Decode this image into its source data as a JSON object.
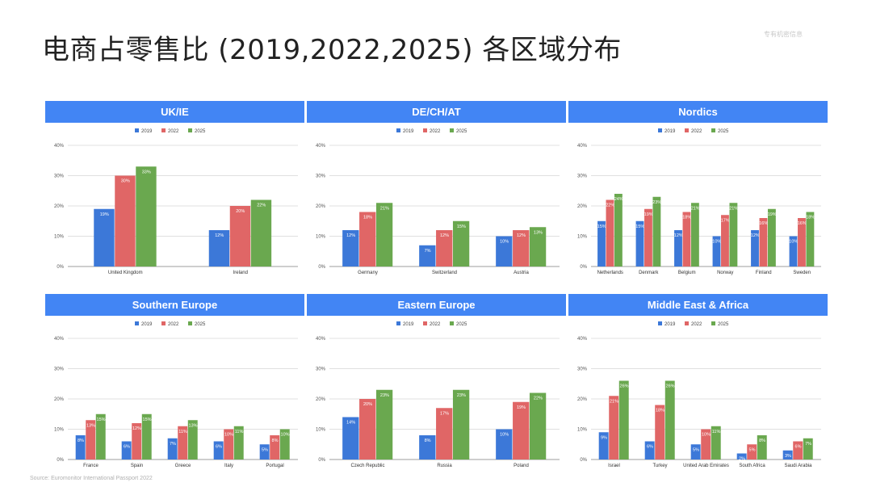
{
  "page": {
    "title": "电商占零售比 (2019,2022,2025) 各区域分布",
    "watermark": "专有机密信息",
    "source": "Source: Euromonitor International Passport 2022"
  },
  "colors": {
    "2019": "#3c78d8",
    "2022": "#e06666",
    "2025": "#6aa84f",
    "header": "#4285f4",
    "grid": "#e0e0e0"
  },
  "chart_data": [
    {
      "type": "bar",
      "title": "UK/IE",
      "categories": [
        "United Kingdom",
        "Ireland"
      ],
      "ylim": [
        0,
        40
      ],
      "y_ticks": [
        "0%",
        "10%",
        "20%",
        "30%",
        "40%"
      ],
      "legend_position": "top",
      "series": [
        {
          "name": "2019",
          "values": [
            19,
            12
          ],
          "labels": [
            "19%",
            "12%"
          ]
        },
        {
          "name": "2022",
          "values": [
            30,
            20
          ],
          "labels": [
            "30%",
            "20%"
          ]
        },
        {
          "name": "2025",
          "values": [
            33,
            22
          ],
          "labels": [
            "33%",
            "22%"
          ]
        }
      ]
    },
    {
      "type": "bar",
      "title": "DE/CH/AT",
      "categories": [
        "Germany",
        "Switzerland",
        "Austria"
      ],
      "ylim": [
        0,
        40
      ],
      "y_ticks": [
        "0%",
        "10%",
        "20%",
        "30%",
        "40%"
      ],
      "legend_position": "top",
      "series": [
        {
          "name": "2019",
          "values": [
            12,
            7,
            10
          ],
          "labels": [
            "12%",
            "7%",
            "10%"
          ]
        },
        {
          "name": "2022",
          "values": [
            18,
            12,
            12
          ],
          "labels": [
            "18%",
            "12%",
            "12%"
          ]
        },
        {
          "name": "2025",
          "values": [
            21,
            15,
            13
          ],
          "labels": [
            "21%",
            "15%",
            "13%"
          ]
        }
      ]
    },
    {
      "type": "bar",
      "title": "Nordics",
      "categories": [
        "Netherlands",
        "Denmark",
        "Belgium",
        "Norway",
        "Finland",
        "Sweden"
      ],
      "ylim": [
        0,
        40
      ],
      "y_ticks": [
        "0%",
        "10%",
        "20%",
        "30%",
        "40%"
      ],
      "legend_position": "top",
      "series": [
        {
          "name": "2019",
          "values": [
            15,
            15,
            12,
            10,
            12,
            10
          ],
          "labels": [
            "15%",
            "15%",
            "12%",
            "10%",
            "12%",
            "10%"
          ]
        },
        {
          "name": "2022",
          "values": [
            22,
            19,
            18,
            17,
            16,
            16
          ],
          "labels": [
            "22%",
            "19%",
            "18%",
            "17%",
            "16%",
            "16%"
          ]
        },
        {
          "name": "2025",
          "values": [
            24,
            23,
            21,
            21,
            19,
            18
          ],
          "labels": [
            "24%",
            "23%",
            "21%",
            "21%",
            "19%",
            "18%"
          ]
        }
      ]
    },
    {
      "type": "bar",
      "title": "Southern Europe",
      "categories": [
        "France",
        "Spain",
        "Greece",
        "Italy",
        "Portugal"
      ],
      "ylim": [
        0,
        40
      ],
      "y_ticks": [
        "0%",
        "10%",
        "20%",
        "30%",
        "40%"
      ],
      "legend_position": "top",
      "series": [
        {
          "name": "2019",
          "values": [
            8,
            6,
            7,
            6,
            5
          ],
          "labels": [
            "8%",
            "6%",
            "7%",
            "6%",
            "5%"
          ]
        },
        {
          "name": "2022",
          "values": [
            13,
            12,
            11,
            10,
            8
          ],
          "labels": [
            "13%",
            "12%",
            "11%",
            "10%",
            "8%"
          ]
        },
        {
          "name": "2025",
          "values": [
            15,
            15,
            13,
            11,
            10
          ],
          "labels": [
            "15%",
            "15%",
            "13%",
            "11%",
            "10%"
          ]
        }
      ]
    },
    {
      "type": "bar",
      "title": "Eastern Europe",
      "categories": [
        "Czech Republic",
        "Russia",
        "Poland"
      ],
      "ylim": [
        0,
        40
      ],
      "y_ticks": [
        "0%",
        "10%",
        "20%",
        "30%",
        "40%"
      ],
      "legend_position": "top",
      "series": [
        {
          "name": "2019",
          "values": [
            14,
            8,
            10
          ],
          "labels": [
            "14%",
            "8%",
            "10%"
          ]
        },
        {
          "name": "2022",
          "values": [
            20,
            17,
            19
          ],
          "labels": [
            "20%",
            "17%",
            "19%"
          ]
        },
        {
          "name": "2025",
          "values": [
            23,
            23,
            22
          ],
          "labels": [
            "23%",
            "23%",
            "22%"
          ]
        }
      ]
    },
    {
      "type": "bar",
      "title": "Middle East & Africa",
      "categories": [
        "Israel",
        "Turkey",
        "United Arab Emirates",
        "South Africa",
        "Saudi Arabia"
      ],
      "ylim": [
        0,
        40
      ],
      "y_ticks": [
        "0%",
        "10%",
        "20%",
        "30%",
        "40%"
      ],
      "legend_position": "top",
      "series": [
        {
          "name": "2019",
          "values": [
            9,
            6,
            5,
            2,
            3
          ],
          "labels": [
            "9%",
            "6%",
            "5%",
            "2%",
            "3%"
          ]
        },
        {
          "name": "2022",
          "values": [
            21,
            18,
            10,
            5,
            6
          ],
          "labels": [
            "21%",
            "18%",
            "10%",
            "5%",
            "6%"
          ]
        },
        {
          "name": "2025",
          "values": [
            26,
            26,
            11,
            8,
            7
          ],
          "labels": [
            "26%",
            "26%",
            "11%",
            "8%",
            "7%"
          ]
        }
      ]
    }
  ]
}
